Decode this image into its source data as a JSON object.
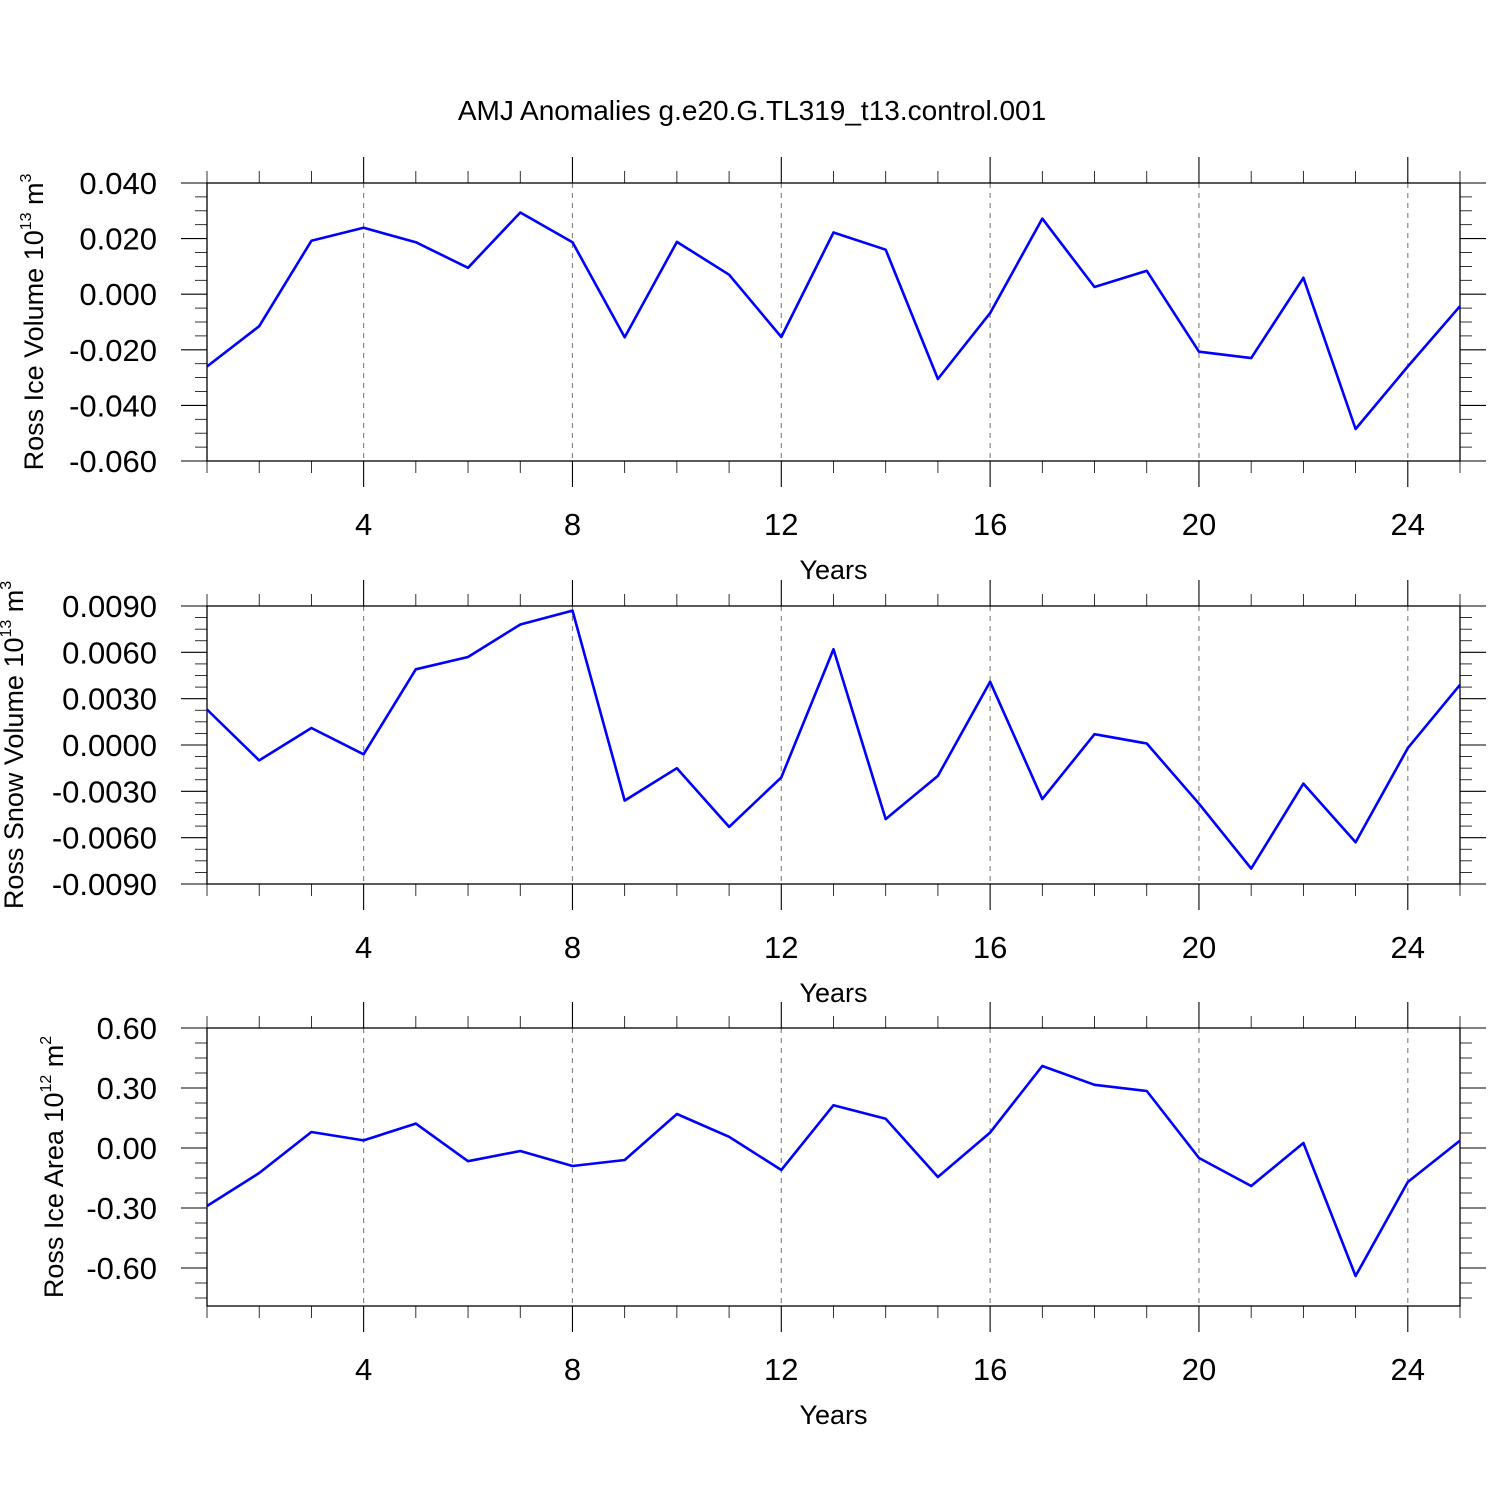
{
  "title": "AMJ Anomalies g.e20.G.TL319_t13.control.001",
  "chart_data": [
    {
      "type": "line",
      "title": "",
      "xlabel": "Years",
      "ylabel": "Ross Ice Volume 10",
      "ylabel_exp": "13",
      "ylabel_unit": " m",
      "ylabel_unit_exp": "3",
      "xlim": [
        1,
        25
      ],
      "ylim": [
        -0.06,
        0.04
      ],
      "grid": "x-dashed",
      "x_ticks": [
        4,
        8,
        12,
        16,
        20,
        24
      ],
      "x_tick_labels": [
        "4",
        "8",
        "12",
        "16",
        "20",
        "24"
      ],
      "y_ticks": [
        0.04,
        0.02,
        0.0,
        -0.02,
        -0.04,
        -0.06
      ],
      "y_tick_labels": [
        "0.040",
        "0.020",
        "0.000",
        "-0.020",
        "-0.040",
        "-0.060"
      ],
      "color": "#0000ff",
      "x": [
        1,
        2,
        3,
        4,
        5,
        6,
        7,
        8,
        9,
        10,
        11,
        12,
        13,
        14,
        15,
        16,
        17,
        18,
        19,
        20,
        21,
        22,
        23,
        24,
        25
      ],
      "values": [
        -0.026,
        -0.0115,
        0.0192,
        0.0239,
        0.0187,
        0.0095,
        0.0294,
        0.0187,
        -0.0155,
        0.0188,
        0.007,
        -0.0154,
        0.0222,
        0.016,
        -0.0305,
        -0.0068,
        0.0272,
        0.0026,
        0.0084,
        -0.0207,
        -0.023,
        0.0059,
        -0.0485,
        -0.026,
        -0.0043
      ]
    },
    {
      "type": "line",
      "title": "",
      "xlabel": "Years",
      "ylabel": "Ross Snow Volume 10",
      "ylabel_exp": "13",
      "ylabel_unit": " m",
      "ylabel_unit_exp": "3",
      "xlim": [
        1,
        25
      ],
      "ylim": [
        -0.009,
        0.009
      ],
      "grid": "x-dashed",
      "x_ticks": [
        4,
        8,
        12,
        16,
        20,
        24
      ],
      "x_tick_labels": [
        "4",
        "8",
        "12",
        "16",
        "20",
        "24"
      ],
      "y_ticks": [
        0.009,
        0.006,
        0.003,
        0.0,
        -0.003,
        -0.006,
        -0.009
      ],
      "y_tick_labels": [
        "0.0090",
        "0.0060",
        "0.0030",
        "0.0000",
        "-0.0030",
        "-0.0060",
        "-0.0090"
      ],
      "color": "#0000ff",
      "x": [
        1,
        2,
        3,
        4,
        5,
        6,
        7,
        8,
        9,
        10,
        11,
        12,
        13,
        14,
        15,
        16,
        17,
        18,
        19,
        20,
        21,
        22,
        23,
        24,
        25
      ],
      "values": [
        0.0023,
        -0.001,
        0.0011,
        -0.0006,
        0.0049,
        0.0057,
        0.0078,
        0.0087,
        -0.0036,
        -0.0015,
        -0.0053,
        -0.0021,
        0.0062,
        -0.0048,
        -0.002,
        0.0041,
        -0.0035,
        0.0007,
        0.0001,
        -0.0038,
        -0.008,
        -0.0025,
        -0.0063,
        -0.0002,
        0.0039
      ]
    },
    {
      "type": "line",
      "title": "",
      "xlabel": "Years",
      "ylabel": "Ross Ice Area 10",
      "ylabel_exp": "12",
      "ylabel_unit": " m",
      "ylabel_unit_exp": "2",
      "xlim": [
        1,
        25
      ],
      "ylim": [
        -0.79,
        0.6
      ],
      "grid": "x-dashed",
      "x_ticks": [
        4,
        8,
        12,
        16,
        20,
        24
      ],
      "x_tick_labels": [
        "4",
        "8",
        "12",
        "16",
        "20",
        "24"
      ],
      "y_ticks": [
        0.6,
        0.3,
        0.0,
        -0.3,
        -0.6
      ],
      "y_tick_labels": [
        "0.60",
        "0.30",
        "0.00",
        "-0.30",
        "-0.60"
      ],
      "color": "#0000ff",
      "x": [
        1,
        2,
        3,
        4,
        5,
        6,
        7,
        8,
        9,
        10,
        11,
        12,
        13,
        14,
        15,
        16,
        17,
        18,
        19,
        20,
        21,
        22,
        23,
        24,
        25
      ],
      "values": [
        -0.29,
        -0.125,
        0.08,
        0.038,
        0.122,
        -0.066,
        -0.015,
        -0.09,
        -0.06,
        0.17,
        0.056,
        -0.11,
        0.214,
        0.146,
        -0.145,
        0.077,
        0.41,
        0.316,
        0.285,
        -0.05,
        -0.19,
        0.025,
        -0.64,
        -0.17,
        0.037
      ]
    }
  ]
}
